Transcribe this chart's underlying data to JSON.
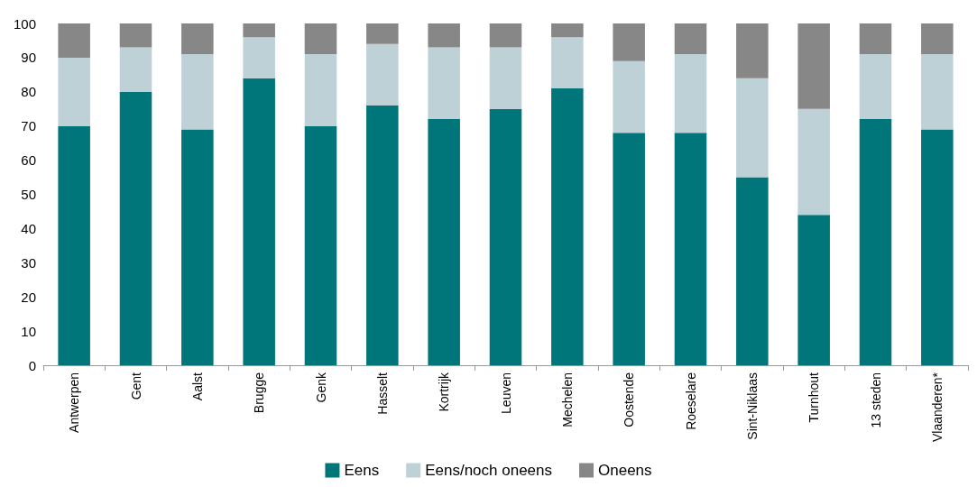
{
  "chart_data": {
    "type": "bar",
    "stacked": true,
    "categories": [
      "Antwerpen",
      "Gent",
      "Aalst",
      "Brugge",
      "Genk",
      "Hasselt",
      "Kortrijk",
      "Leuven",
      "Mechelen",
      "Oostende",
      "Roeselare",
      "Sint-Niklaas",
      "Turnhout",
      "13 steden",
      "Vlaanderen*"
    ],
    "series": [
      {
        "name": "Eens",
        "color": "#00767a",
        "values": [
          70,
          80,
          69,
          84,
          70,
          76,
          72,
          75,
          81,
          68,
          68,
          55,
          44,
          72,
          69
        ]
      },
      {
        "name": "Eens/noch oneens",
        "color": "#bdd1d6",
        "values": [
          20,
          13,
          22,
          12,
          21,
          18,
          21,
          18,
          15,
          21,
          23,
          29,
          31,
          19,
          22
        ]
      },
      {
        "name": "Oneens",
        "color": "#878787",
        "values": [
          10,
          7,
          9,
          4,
          9,
          6,
          7,
          7,
          4,
          11,
          9,
          16,
          25,
          9,
          9
        ]
      }
    ],
    "ylim": [
      0,
      100
    ],
    "yticks": [
      0,
      10,
      20,
      30,
      40,
      50,
      60,
      70,
      80,
      90,
      100
    ],
    "grid": false,
    "legend": "bottom"
  }
}
